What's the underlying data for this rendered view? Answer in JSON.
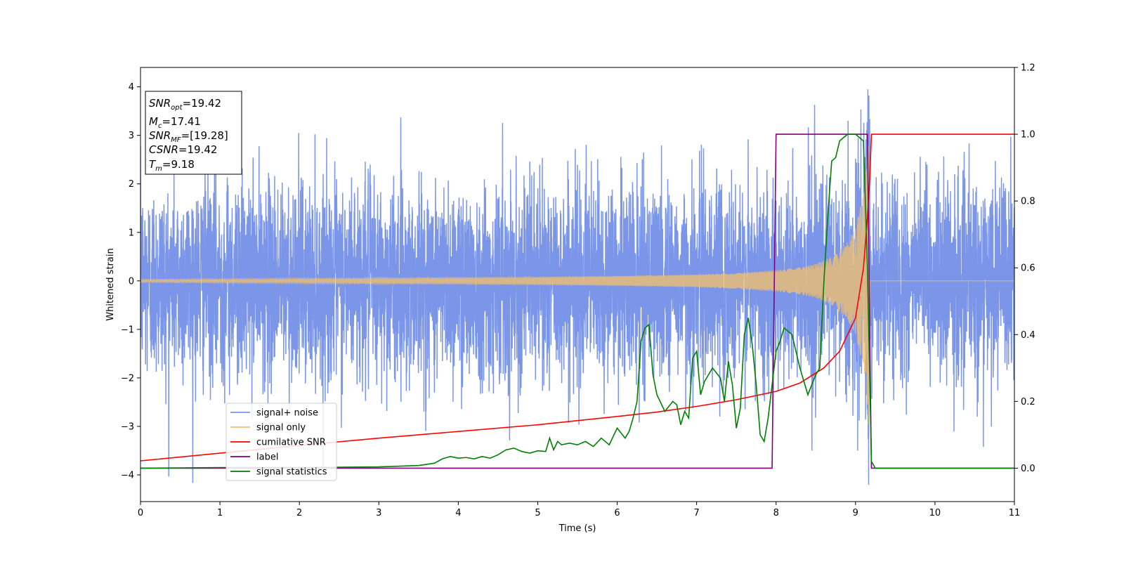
{
  "chart_data": {
    "type": "line",
    "xlabel": "Time (s)",
    "ylabel": "Whitened strain",
    "xlim": [
      0,
      11
    ],
    "ylim": [
      -4.55,
      4.4
    ],
    "ylim_right": [
      -0.1,
      1.2
    ],
    "x_ticks": [
      "0",
      "1",
      "2",
      "3",
      "4",
      "5",
      "6",
      "7",
      "8",
      "9",
      "10",
      "11"
    ],
    "y_ticks": [
      "−4",
      "−3",
      "−2",
      "−1",
      "0",
      "1",
      "2",
      "3",
      "4"
    ],
    "y_ticks_right": [
      "0.0",
      "0.2",
      "0.4",
      "0.6",
      "0.8",
      "1.0",
      "1.2"
    ],
    "grid": false,
    "legend_position": "lower-left",
    "annotation": {
      "lines": [
        {
          "sym": "SNR",
          "sub": "opt",
          "val": "=19.42"
        },
        {
          "sym": "M",
          "sub": "c",
          "val": "=17.41"
        },
        {
          "sym": "SNR",
          "sub": "MF",
          "val": "=[19.28]"
        },
        {
          "sym": "CSNR",
          "sub": "",
          "val": "=19.42"
        },
        {
          "sym": "T",
          "sub": "m",
          "val": "=9.18"
        }
      ]
    },
    "series": [
      {
        "name": "signal+ noise",
        "color": "#7b96e8",
        "axis": "left",
        "description_values": {
          "mean": 0,
          "std": 1.0,
          "min": -4.2,
          "max": 3.95
        },
        "x": [
          0,
          11
        ]
      },
      {
        "name": "signal only",
        "color": "#f5c26b",
        "axis": "left",
        "x": [
          0,
          1,
          2,
          3,
          4,
          5,
          6,
          7,
          7.5,
          8,
          8.3,
          8.5,
          8.7,
          8.9,
          9.0,
          9.1,
          9.15,
          9.18,
          9.2,
          11
        ],
        "amplitude": [
          0.03,
          0.04,
          0.05,
          0.06,
          0.07,
          0.08,
          0.1,
          0.13,
          0.16,
          0.22,
          0.28,
          0.35,
          0.5,
          0.8,
          1.1,
          1.8,
          2.6,
          3.2,
          0,
          0
        ]
      },
      {
        "name": "cumilative SNR",
        "color": "#ff0000",
        "axis": "right",
        "x": [
          0,
          1,
          2,
          3,
          4,
          5,
          6,
          6.5,
          7,
          7.5,
          8,
          8.3,
          8.6,
          8.8,
          9.0,
          9.1,
          9.15,
          9.18,
          9.2,
          11
        ],
        "y": [
          0.022,
          0.045,
          0.068,
          0.09,
          0.11,
          0.13,
          0.155,
          0.168,
          0.185,
          0.205,
          0.23,
          0.255,
          0.3,
          0.35,
          0.45,
          0.6,
          0.75,
          0.87,
          1.0,
          1.0
        ]
      },
      {
        "name": "label",
        "color": "#800080",
        "axis": "right",
        "x": [
          0,
          7.95,
          8.0,
          9.15,
          9.2,
          11
        ],
        "y": [
          0,
          0,
          1,
          1,
          0,
          0
        ]
      },
      {
        "name": "signal statistics",
        "color": "#008000",
        "axis": "right",
        "x": [
          0,
          0.5,
          1,
          1.5,
          2,
          2.5,
          3,
          3.5,
          3.7,
          3.8,
          3.9,
          4.0,
          4.1,
          4.2,
          4.3,
          4.4,
          4.5,
          4.6,
          4.7,
          4.8,
          4.9,
          5.0,
          5.1,
          5.15,
          5.2,
          5.25,
          5.3,
          5.4,
          5.5,
          5.6,
          5.7,
          5.8,
          5.9,
          6.0,
          6.1,
          6.15,
          6.2,
          6.25,
          6.3,
          6.35,
          6.4,
          6.45,
          6.5,
          6.6,
          6.7,
          6.75,
          6.8,
          6.85,
          6.9,
          6.95,
          7.0,
          7.05,
          7.1,
          7.2,
          7.3,
          7.35,
          7.4,
          7.45,
          7.5,
          7.55,
          7.6,
          7.65,
          7.7,
          7.75,
          7.8,
          7.85,
          7.9,
          7.95,
          8.0,
          8.05,
          8.1,
          8.2,
          8.3,
          8.4,
          8.5,
          8.55,
          8.6,
          8.65,
          8.7,
          8.75,
          8.8,
          8.9,
          9.0,
          9.1,
          9.15,
          9.2,
          9.25,
          9.3,
          9.5,
          10,
          10.5,
          11
        ],
        "y": [
          0,
          0.001,
          0.002,
          0.002,
          0.002,
          0.003,
          0.004,
          0.008,
          0.015,
          0.028,
          0.035,
          0.03,
          0.032,
          0.028,
          0.035,
          0.03,
          0.04,
          0.055,
          0.06,
          0.05,
          0.045,
          0.052,
          0.05,
          0.09,
          0.055,
          0.08,
          0.07,
          0.075,
          0.07,
          0.08,
          0.065,
          0.09,
          0.07,
          0.12,
          0.09,
          0.11,
          0.15,
          0.2,
          0.38,
          0.42,
          0.43,
          0.28,
          0.22,
          0.17,
          0.2,
          0.19,
          0.13,
          0.17,
          0.15,
          0.33,
          0.35,
          0.22,
          0.26,
          0.3,
          0.27,
          0.2,
          0.32,
          0.25,
          0.12,
          0.18,
          0.4,
          0.45,
          0.37,
          0.25,
          0.1,
          0.08,
          0.15,
          0.25,
          0.35,
          0.38,
          0.42,
          0.4,
          0.3,
          0.22,
          0.28,
          0.3,
          0.55,
          0.75,
          0.92,
          0.93,
          0.98,
          1.0,
          1.0,
          0.98,
          0.6,
          0.02,
          0.0,
          0.0,
          0.0,
          0.0,
          0.0,
          0.0
        ]
      }
    ]
  }
}
